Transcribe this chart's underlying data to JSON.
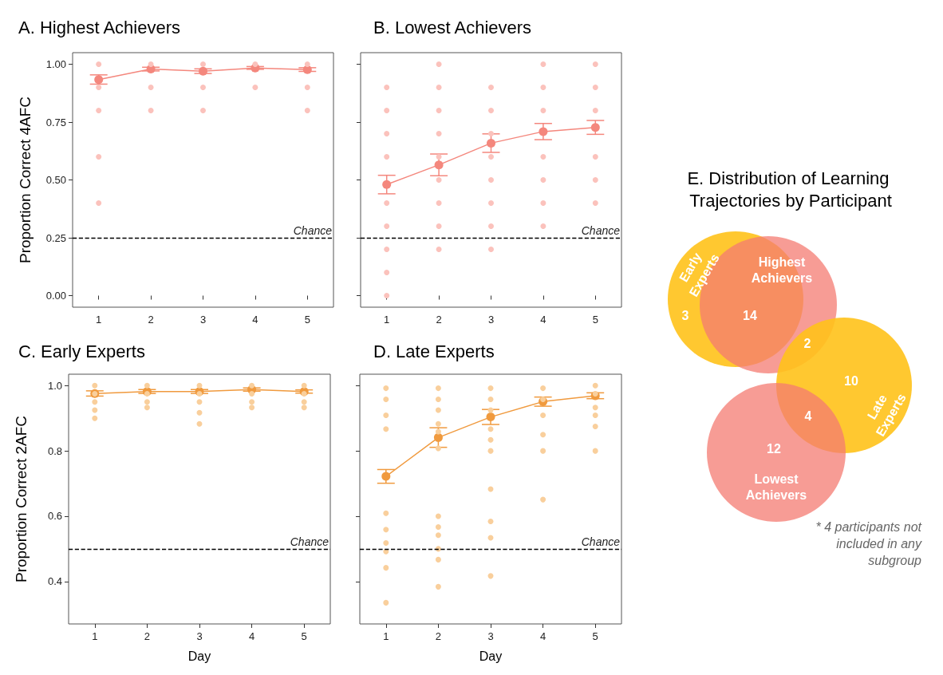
{
  "chart_data": [
    {
      "type": "line",
      "title": "A. Highest Achievers",
      "ylabel": "Proportion Correct 4AFC",
      "categories": [
        "1",
        "2",
        "3",
        "4",
        "5"
      ],
      "ylim": [
        -0.05,
        1.05
      ],
      "yticks": [
        {
          "value": 0,
          "label": "0.00"
        },
        {
          "value": 0.25,
          "label": "0.25"
        },
        {
          "value": 0.5,
          "label": "0.50"
        },
        {
          "value": 0.75,
          "label": "0.75"
        },
        {
          "value": 1,
          "label": "1.00"
        }
      ],
      "ref_lines": [
        {
          "axis": "y",
          "value": 0.25,
          "label": "Chance",
          "color": "#000000",
          "line_style": "dashed"
        }
      ],
      "series": [
        {
          "type": "scatter",
          "color": "#fbc2bc",
          "marker": "circle",
          "x": [
            "1",
            "1",
            "1",
            "1",
            "1",
            "2",
            "2",
            "2",
            "3",
            "3",
            "3",
            "4",
            "4",
            "5",
            "5",
            "5"
          ],
          "values": [
            1,
            0.9,
            0.8,
            0.6,
            0.4,
            1,
            0.9,
            0.8,
            1,
            0.9,
            0.8,
            1,
            0.9,
            1,
            0.9,
            0.8
          ]
        },
        {
          "type": "line",
          "color": "#f4877d",
          "marker": "circle",
          "values": [
            0.934,
            0.979,
            0.97,
            0.984,
            0.977
          ],
          "errors": [
            0.02,
            0.008,
            0.01,
            0.006,
            0.008
          ]
        }
      ]
    },
    {
      "type": "line",
      "title": "B. Lowest Achievers",
      "categories": [
        "1",
        "2",
        "3",
        "4",
        "5"
      ],
      "ylim": [
        -0.05,
        1.05
      ],
      "tick_labels": "x",
      "yticks": [
        0,
        0.25,
        0.5,
        0.75,
        1
      ],
      "ref_lines": [
        {
          "axis": "y",
          "value": 0.25,
          "label": "Chance",
          "color": "#000000",
          "line_style": "dashed"
        }
      ],
      "series": [
        {
          "type": "scatter",
          "color": "#fbc2bc",
          "marker": "circle",
          "x": [
            "1",
            "1",
            "1",
            "1",
            "1",
            "1",
            "1",
            "1",
            "1",
            "2",
            "2",
            "2",
            "2",
            "2",
            "2",
            "2",
            "2",
            "2",
            "3",
            "3",
            "3",
            "3",
            "3",
            "3",
            "3",
            "3",
            "4",
            "4",
            "4",
            "4",
            "4",
            "4",
            "4",
            "5",
            "5",
            "5",
            "5",
            "5",
            "5"
          ],
          "values": [
            0.9,
            0.8,
            0.7,
            0.6,
            0.4,
            0.3,
            0.2,
            0.1,
            0,
            1,
            0.9,
            0.8,
            0.7,
            0.6,
            0.5,
            0.4,
            0.3,
            0.2,
            0.9,
            0.8,
            0.7,
            0.6,
            0.5,
            0.4,
            0.3,
            0.2,
            1,
            0.9,
            0.8,
            0.6,
            0.5,
            0.4,
            0.3,
            1,
            0.9,
            0.8,
            0.6,
            0.5,
            0.4
          ]
        },
        {
          "type": "line",
          "color": "#f4877d",
          "marker": "circle",
          "values": [
            0.48,
            0.565,
            0.659,
            0.709,
            0.727
          ],
          "errors": [
            0.04,
            0.047,
            0.04,
            0.035,
            0.03
          ]
        }
      ]
    },
    {
      "type": "line",
      "title": "C. Early Experts",
      "ylabel": "Proportion Correct 2AFC",
      "xlabel": "Day",
      "categories": [
        "1",
        "2",
        "3",
        "4",
        "5"
      ],
      "ylim": [
        0.27,
        1.035
      ],
      "yticks": [
        0.4,
        0.6,
        0.8,
        {
          "value": 1,
          "label": "1.0"
        }
      ],
      "ref_lines": [
        {
          "axis": "y",
          "value": 0.5,
          "label": "Chance",
          "color": "#000000",
          "line_style": "dashed"
        }
      ],
      "series": [
        {
          "type": "scatter",
          "color": "#f9cf9c",
          "marker": "circle",
          "x": [
            "1",
            "1",
            "1",
            "1",
            "1",
            "2",
            "2",
            "2",
            "2",
            "3",
            "3",
            "3",
            "3",
            "3",
            "4",
            "4",
            "4",
            "4",
            "5",
            "5",
            "5",
            "5"
          ],
          "values": [
            1,
            0.975,
            0.95,
            0.925,
            0.9,
            1,
            0.975,
            0.95,
            0.933,
            1,
            0.975,
            0.95,
            0.917,
            0.883,
            1,
            0.975,
            0.95,
            0.933,
            1,
            0.975,
            0.95,
            0.933
          ]
        },
        {
          "type": "line",
          "color": "#f09a3e",
          "marker": "circle",
          "values": [
            0.976,
            0.982,
            0.982,
            0.988,
            0.982
          ],
          "errors": [
            0.008,
            0.006,
            0.006,
            0.005,
            0.005
          ]
        }
      ]
    },
    {
      "type": "line",
      "title": "D. Late Experts",
      "xlabel": "Day",
      "categories": [
        "1",
        "2",
        "3",
        "4",
        "5"
      ],
      "ylim": [
        0.27,
        1.035
      ],
      "tick_labels": "x",
      "yticks": [
        0.4,
        0.6,
        0.8,
        1
      ],
      "ref_lines": [
        {
          "axis": "y",
          "value": 0.5,
          "label": "Chance",
          "color": "#000000",
          "line_style": "dashed"
        }
      ],
      "series": [
        {
          "type": "scatter",
          "color": "#f9cf9c",
          "marker": "circle",
          "x": [
            "1",
            "1",
            "1",
            "1",
            "1",
            "1",
            "1",
            "1",
            "1",
            "1",
            "2",
            "2",
            "2",
            "2",
            "2",
            "2",
            "2",
            "2",
            "2",
            "2",
            "2",
            "2",
            "3",
            "3",
            "3",
            "3",
            "3",
            "3",
            "3",
            "3",
            "3",
            "3",
            "4",
            "4",
            "4",
            "4",
            "4",
            "4",
            "5",
            "5",
            "5",
            "5",
            "5",
            "5"
          ],
          "values": [
            0.992,
            0.958,
            0.909,
            0.867,
            0.609,
            0.559,
            0.518,
            0.492,
            0.442,
            0.335,
            0.992,
            0.958,
            0.925,
            0.883,
            0.859,
            0.808,
            0.6,
            0.567,
            0.542,
            0.5,
            0.467,
            0.384,
            0.992,
            0.958,
            0.925,
            0.867,
            0.834,
            0.8,
            0.683,
            0.584,
            0.534,
            0.417,
            0.992,
            0.958,
            0.909,
            0.85,
            0.8,
            0.651,
            1,
            0.975,
            0.933,
            0.909,
            0.875,
            0.8
          ]
        },
        {
          "type": "line",
          "color": "#f09a3e",
          "marker": "circle",
          "values": [
            0.722,
            0.841,
            0.904,
            0.951,
            0.969
          ],
          "errors": [
            0.021,
            0.03,
            0.023,
            0.014,
            0.009
          ]
        }
      ]
    },
    {
      "type": "other",
      "title": "E. Distribution of Learning Trajectories by Participant",
      "categories": [
        null,
        null,
        null,
        null,
        null,
        null
      ],
      "data_labels": true,
      "values": [
        3,
        14,
        2,
        10,
        4,
        12
      ],
      "annotations": [
        "Early Experts",
        "Highest Achievers",
        "Late Experts",
        "Lowest Achievers",
        "* 4 participants not included in any subgroup"
      ]
    }
  ]
}
